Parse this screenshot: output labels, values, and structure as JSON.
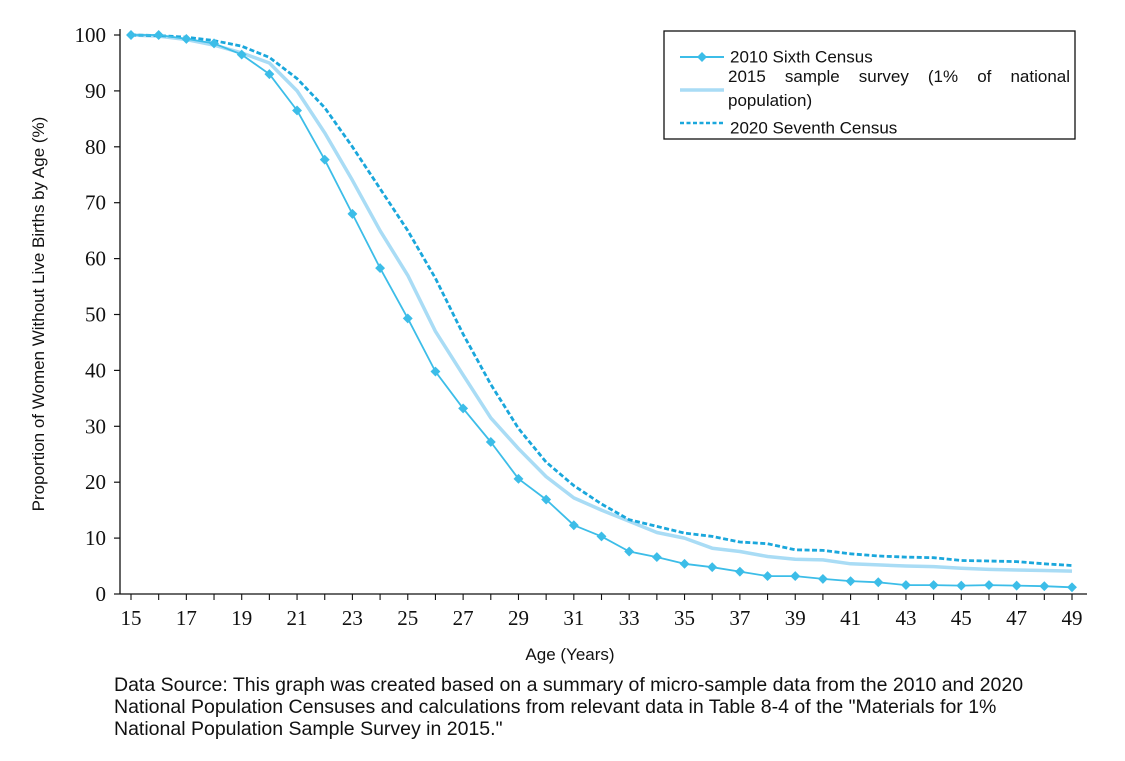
{
  "chart_data": {
    "type": "line",
    "xlabel": "Age (Years)",
    "ylabel": "Proportion of Women Without Live Births by Age (%)",
    "xlim": [
      15,
      49
    ],
    "ylim": [
      0,
      100
    ],
    "x_ticks": [
      15,
      17,
      19,
      21,
      23,
      25,
      27,
      29,
      31,
      33,
      35,
      37,
      39,
      41,
      43,
      45,
      47,
      49
    ],
    "y_ticks": [
      0,
      10,
      20,
      30,
      40,
      50,
      60,
      70,
      80,
      90,
      100
    ],
    "x": [
      15,
      16,
      17,
      18,
      19,
      20,
      21,
      22,
      23,
      24,
      25,
      26,
      27,
      28,
      29,
      30,
      31,
      32,
      33,
      34,
      35,
      36,
      37,
      38,
      39,
      40,
      41,
      42,
      43,
      44,
      45,
      46,
      47,
      48,
      49
    ],
    "series": [
      {
        "name": "2010 Sixth Census",
        "color": "#3cbde8",
        "style": "solid-diamond",
        "values": [
          100,
          100,
          99.3,
          98.5,
          96.5,
          93,
          86.5,
          77.7,
          68,
          58.3,
          49.3,
          39.8,
          33.2,
          27.2,
          20.6,
          16.9,
          12.3,
          10.3,
          7.6,
          6.6,
          5.4,
          4.8,
          4,
          3.2,
          3.2,
          2.7,
          2.3,
          2.1,
          1.6,
          1.6,
          1.5,
          1.6,
          1.5,
          1.4,
          1.2
        ]
      },
      {
        "name": "2015 sample survey (1% of national population)",
        "color": "#a9dcf5",
        "style": "solid-thick",
        "values": [
          100,
          99.8,
          99.2,
          98.2,
          96.8,
          95,
          90,
          82.5,
          74,
          65,
          57,
          47,
          39.2,
          31.5,
          26,
          21,
          17.2,
          15,
          13,
          11,
          10,
          8.2,
          7.6,
          6.7,
          6.2,
          6.1,
          5.4,
          5.2,
          5,
          4.9,
          4.6,
          4.4,
          4.3,
          4.2,
          4.1
        ]
      },
      {
        "name": "2020 Seventh Census",
        "color": "#1aa7dc",
        "style": "dashed",
        "values": [
          100,
          99.9,
          99.6,
          99,
          98,
          96,
          92.2,
          87,
          80,
          72.5,
          65,
          56.5,
          46.5,
          37.5,
          29.6,
          23.6,
          19.4,
          16.1,
          13.3,
          12.1,
          10.9,
          10.3,
          9.3,
          9,
          7.9,
          7.8,
          7.2,
          6.8,
          6.6,
          6.5,
          6,
          5.9,
          5.8,
          5.4,
          5.1
        ]
      }
    ],
    "legend": {
      "position": "top-right",
      "border": true
    },
    "grid": false
  },
  "source_note": "Data Source: This graph was created based on a summary of micro-sample data from the 2010 and 2020 National Population Censuses and calculations from relevant data in Table 8-4 of the \"Materials for 1% National Population Sample Survey in 2015.\""
}
